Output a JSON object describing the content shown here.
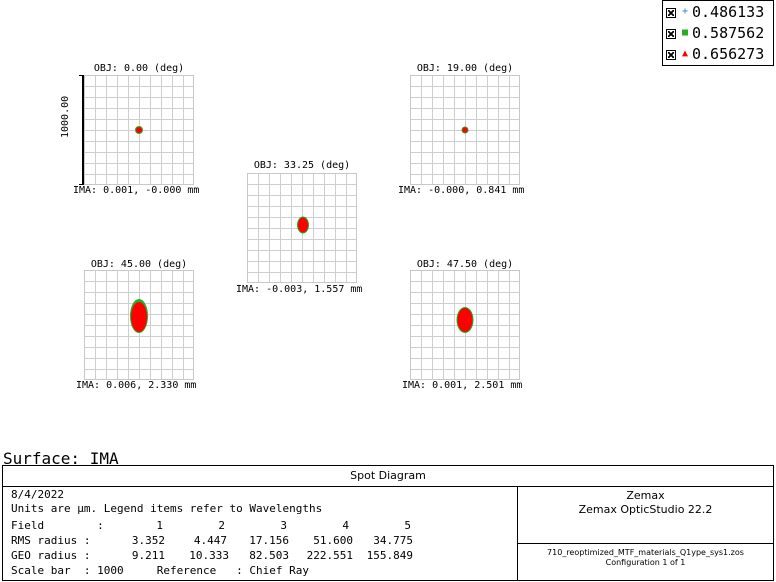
{
  "legend": [
    {
      "symbol": "+",
      "color": "#3a7bd5",
      "value": "0.486133"
    },
    {
      "symbol": "■",
      "color": "#22b022",
      "value": "0.587562"
    },
    {
      "symbol": "▲",
      "color": "#ff0000",
      "value": "0.656273"
    }
  ],
  "scale_bar_label": "1000.00",
  "panels": [
    {
      "title": "OBJ: 0.00 (deg)",
      "ima": "IMA: 0.001, -0.000 mm"
    },
    {
      "title": "OBJ: 19.00 (deg)",
      "ima": "IMA: -0.000, 0.841 mm"
    },
    {
      "title": "OBJ: 33.25 (deg)",
      "ima": "IMA: -0.003, 1.557 mm"
    },
    {
      "title": "OBJ: 45.00 (deg)",
      "ima": "IMA: 0.006, 2.330 mm"
    },
    {
      "title": "OBJ: 47.50 (deg)",
      "ima": "IMA: 0.001, 2.501 mm"
    }
  ],
  "surface_label": "Surface: IMA",
  "info": {
    "title": "Spot Diagram",
    "date": "8/4/2022",
    "units_line": "Units are µm. Legend items refer to Wavelengths",
    "field_label": "Field        :",
    "fields": [
      "1",
      "2",
      "3",
      "4",
      "5"
    ],
    "rms_label": "RMS radius :",
    "rms": [
      "3.352",
      "4.447",
      "17.156",
      "51.600",
      "34.775"
    ],
    "geo_label": "GEO radius :",
    "geo": [
      "9.211",
      "10.333",
      "82.503",
      "222.551",
      "155.849"
    ],
    "scale_line": "Scale bar  : 1000     Reference   : Chief Ray",
    "company": "Zemax",
    "product": "Zemax OpticStudio 22.2",
    "filename": "710_reoptimized_MTF_materials_Q1ype_sys1.zos",
    "configuration": "Configuration 1 of 1"
  }
}
